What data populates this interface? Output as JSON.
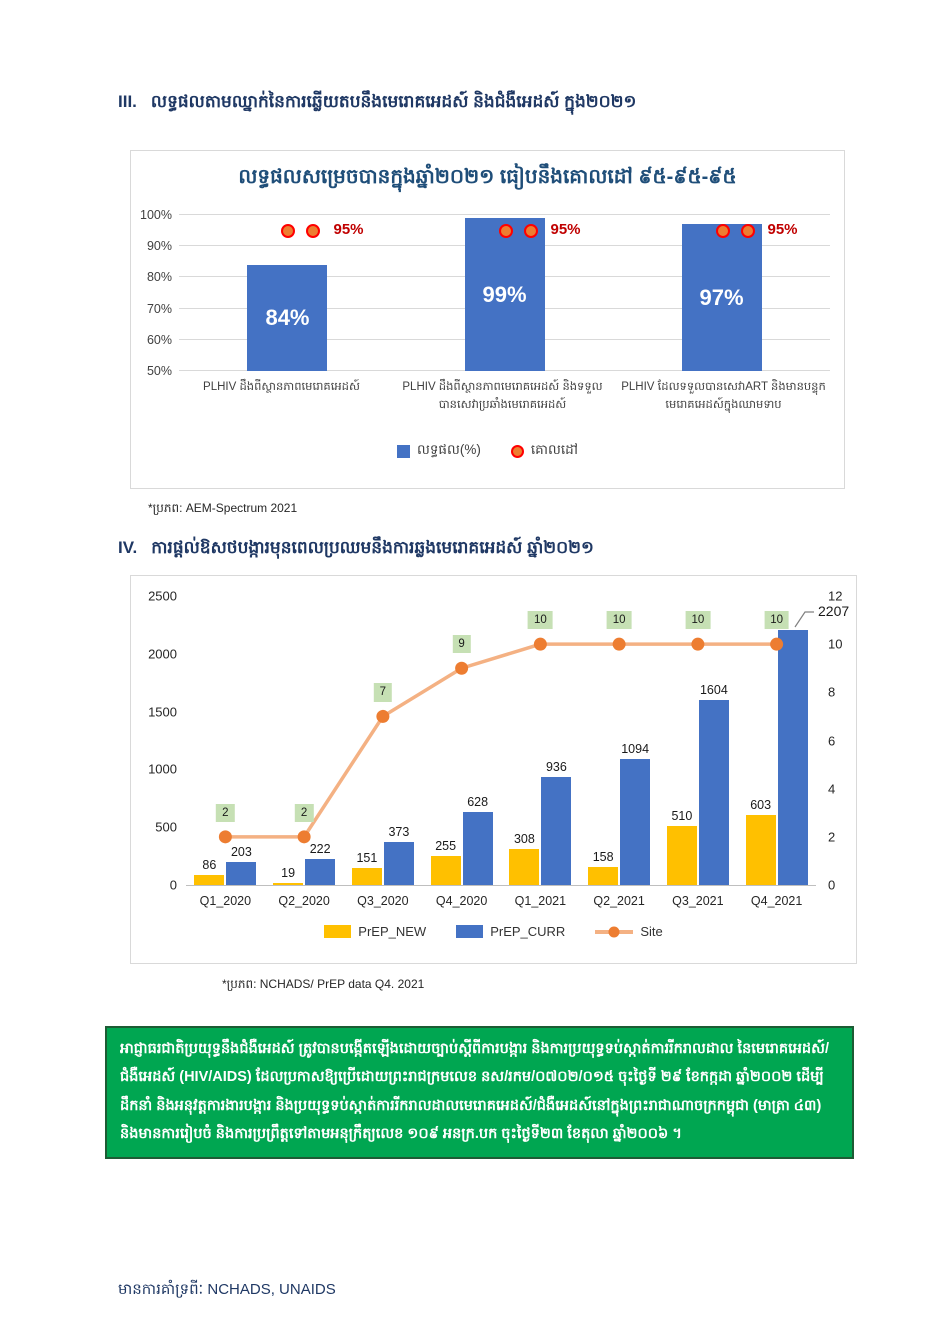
{
  "sections": {
    "s3": {
      "num": "III.",
      "title": "លទ្ធផលតាមឈ្នាក់នៃការឆ្លើយតបនឹងមេរោគអេដស៍ និងជំងឺអេដស៍ ក្នុង២០២១"
    },
    "s4": {
      "num": "IV.",
      "title": "ការផ្តល់ឱសថបង្ការមុនពេលប្រឈមនឹងការឆ្លងមេរោគអេដស៍ ឆ្នាំ២០២១"
    }
  },
  "sources": {
    "chart1": "*ប្រភព: AEM-Spectrum 2021",
    "chart2": "*ប្រភព: NCHADS/ PrEP data Q4. 2021"
  },
  "notice": {
    "lines": [
      "អាជ្ញាធរជាតិប្រយុទ្ធនឹងជំងឺអេដស៍ ត្រូវបានបង្កើតឡើងដោយច្បាប់ស្តីពីការបង្ការ និងការប្រយុទ្ធទប់ស្កាត់ការរីករាលដាល នៃមេរោគអេដស៍/",
      "ជំងឺអេដស៍ (HIV/AIDS) ដែលប្រកាសឱ្យប្រើដោយព្រះរាជក្រមលេខ នស/រកម/០៧០២/០១៥ ចុះថ្ងៃទី ២៩ ខែកក្កដា ឆ្នាំ២០០២ ដើម្បី",
      "ដឹកនាំ និងអនុវត្តការងារបង្ការ និងប្រយុទ្ធទប់ស្កាត់ការរីករាលដាលមេរោគអេដស៍/ជំងឺអេដស៍នៅក្នុងព្រះរាជាណាចក្រកម្ពុជា (មាត្រា ៤៣)",
      "និងមានការរៀបចំ និងការប្រព្រឹត្តទៅតាមអនុក្រឹត្យលេខ ១០៩ អនក្រ.បក ចុះថ្ងៃទី២៣ ខែតុលា ឆ្នាំ២០០៦ ។"
    ]
  },
  "footer": {
    "text": "មានការគាំទ្រពីៈ  NCHADS, UNAIDS"
  },
  "colors": {
    "bar_blue": "#4472C4",
    "bar_yellow": "#FFC000",
    "line_orange": "#F4B183",
    "marker_orange": "#ED7D31",
    "target_ring_red": "#FF0000",
    "target_text_red": "#C00000",
    "site_label_green": "#C6E0B4",
    "notice_green": "#00A651",
    "heading_navy": "#1F3864"
  },
  "chart_data": [
    {
      "type": "bar",
      "title": "លទ្ធផលសម្រេចបានក្នុងឆ្នាំ២០២១ ធៀបនឹងគោលដៅ ៩៥-៩៥-៩៥",
      "categories": [
        "PLHIV ដឹងពីស្ថានភាពមេរោគអេដស៍",
        "PLHIV ដឹងពីស្ថានភាពមេរោគអេដស៍ និងទទួលបានសេវាប្រឆាំងមេរោគអេដស៍",
        "PLHIV ដែលទទួលបានសេវាART និងមានបន្ទុកមេរោគអេដស៍ក្នុងឈាមទាប"
      ],
      "values": [
        84,
        99,
        97
      ],
      "bar_labels": [
        "84%",
        "99%",
        "97%"
      ],
      "bar_color": "#4472C4",
      "target": {
        "value": 95,
        "label": "95%"
      },
      "ylim": [
        50,
        100
      ],
      "ytick_labels": [
        "50%",
        "60%",
        "70%",
        "80%",
        "90%",
        "100%"
      ],
      "grid": true,
      "legend_position": "bottom",
      "legend": [
        {
          "label": "លទ្ធផល(%)",
          "shape": "square",
          "color": "#4472C4"
        },
        {
          "label": "គោលដៅ",
          "shape": "dot",
          "color": "#ED7D31"
        }
      ]
    },
    {
      "type": "combo",
      "categories": [
        "Q1_2020",
        "Q2_2020",
        "Q3_2020",
        "Q4_2020",
        "Q1_2021",
        "Q2_2021",
        "Q3_2021",
        "Q4_2021"
      ],
      "series": [
        {
          "name": "PrEP_NEW",
          "type": "bar",
          "color": "#FFC000",
          "values": [
            86,
            19,
            151,
            255,
            308,
            158,
            510,
            603
          ]
        },
        {
          "name": "PrEP_CURR",
          "type": "bar",
          "color": "#4472C4",
          "values": [
            203,
            222,
            373,
            628,
            936,
            1094,
            1604,
            2207
          ]
        },
        {
          "name": "Site",
          "type": "line",
          "axis": "right",
          "color": "#F4B183",
          "marker_color": "#ED7D31",
          "label_bg": "#C6E0B4",
          "values": [
            2,
            2,
            7,
            9,
            10,
            10,
            10,
            10
          ]
        }
      ],
      "left_axis": {
        "min": 0,
        "max": 2500,
        "ticks": [
          0,
          500,
          1000,
          1500,
          2000,
          2500
        ]
      },
      "right_axis": {
        "min": 0,
        "max": 12,
        "ticks": [
          0,
          2,
          4,
          6,
          8,
          10,
          12
        ]
      },
      "callout": {
        "series": "PrEP_CURR",
        "index": 7,
        "label": "2207"
      },
      "grid": false,
      "legend_position": "bottom"
    }
  ]
}
